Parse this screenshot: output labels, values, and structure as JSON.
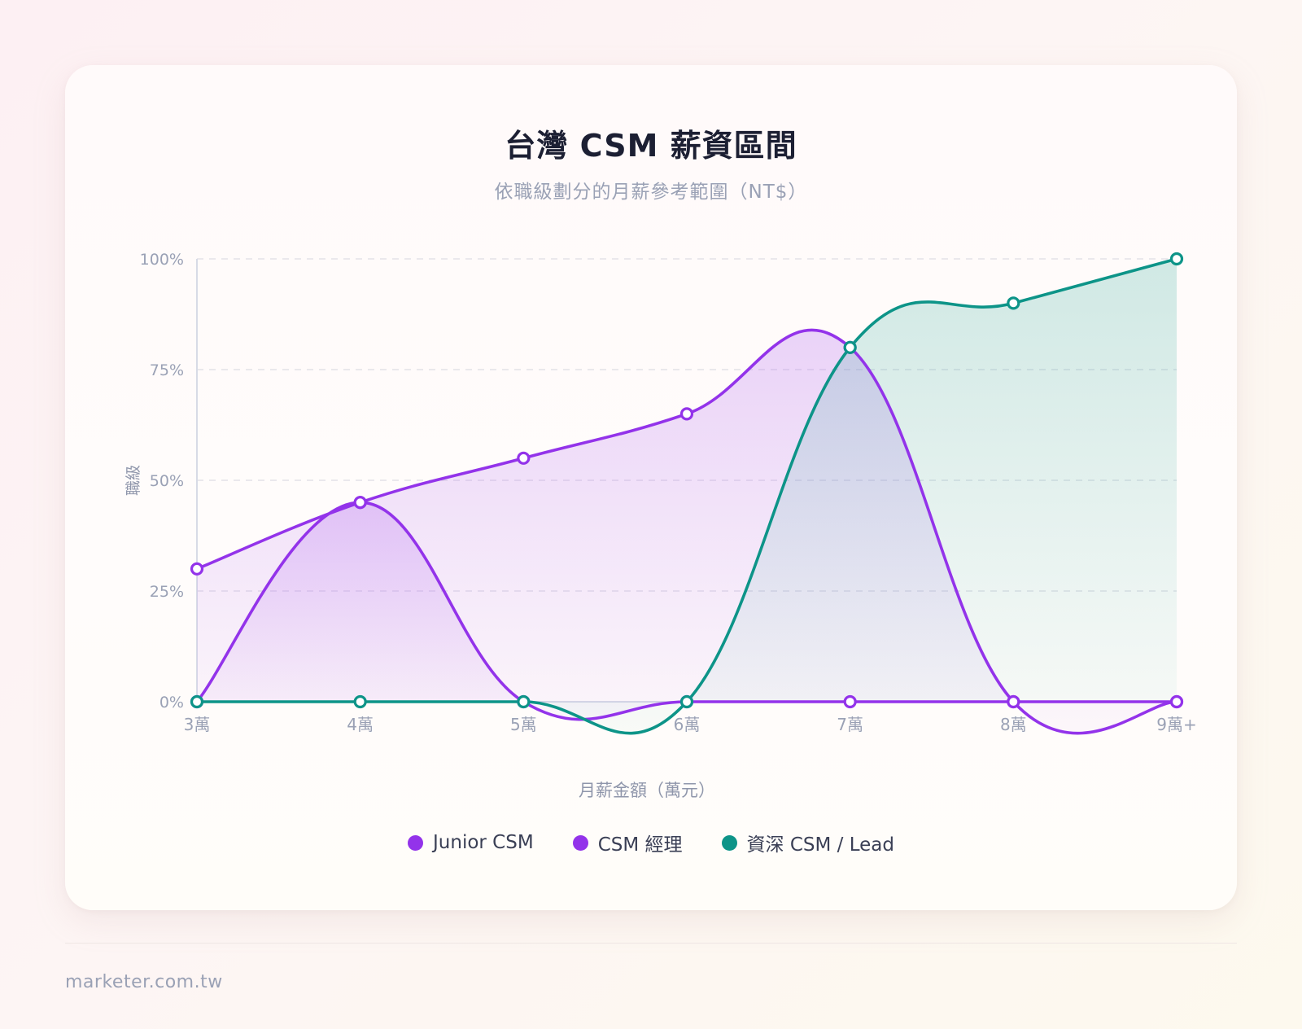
{
  "title": "台灣 CSM 薪資區間",
  "subtitle": "依職級劃分的月薪參考範圍（NT$）",
  "footer": "marketer.com.tw",
  "chart_data": {
    "type": "area",
    "categories": [
      "3萬",
      "4萬",
      "5萬",
      "6萬",
      "7萬",
      "8萬",
      "9萬+"
    ],
    "xlabel": "月薪金額（萬元）",
    "ylabel": "職級",
    "ylim": [
      0,
      100
    ],
    "yticks": [
      "0%",
      "25%",
      "50%",
      "75%",
      "100%"
    ],
    "ytick_values": [
      0,
      25,
      50,
      75,
      100
    ],
    "grid": true,
    "legend_position": "bottom",
    "series": [
      {
        "name": "Junior CSM",
        "color": "#9333ea",
        "values": [
          0,
          45,
          0,
          0,
          0,
          0,
          0
        ]
      },
      {
        "name": "CSM 經理",
        "color": "#9333ea",
        "values": [
          30,
          45,
          55,
          65,
          80,
          0,
          0
        ]
      },
      {
        "name": "資深 CSM / Lead",
        "color": "#0d9488",
        "values": [
          0,
          0,
          0,
          0,
          80,
          90,
          100
        ]
      }
    ]
  }
}
